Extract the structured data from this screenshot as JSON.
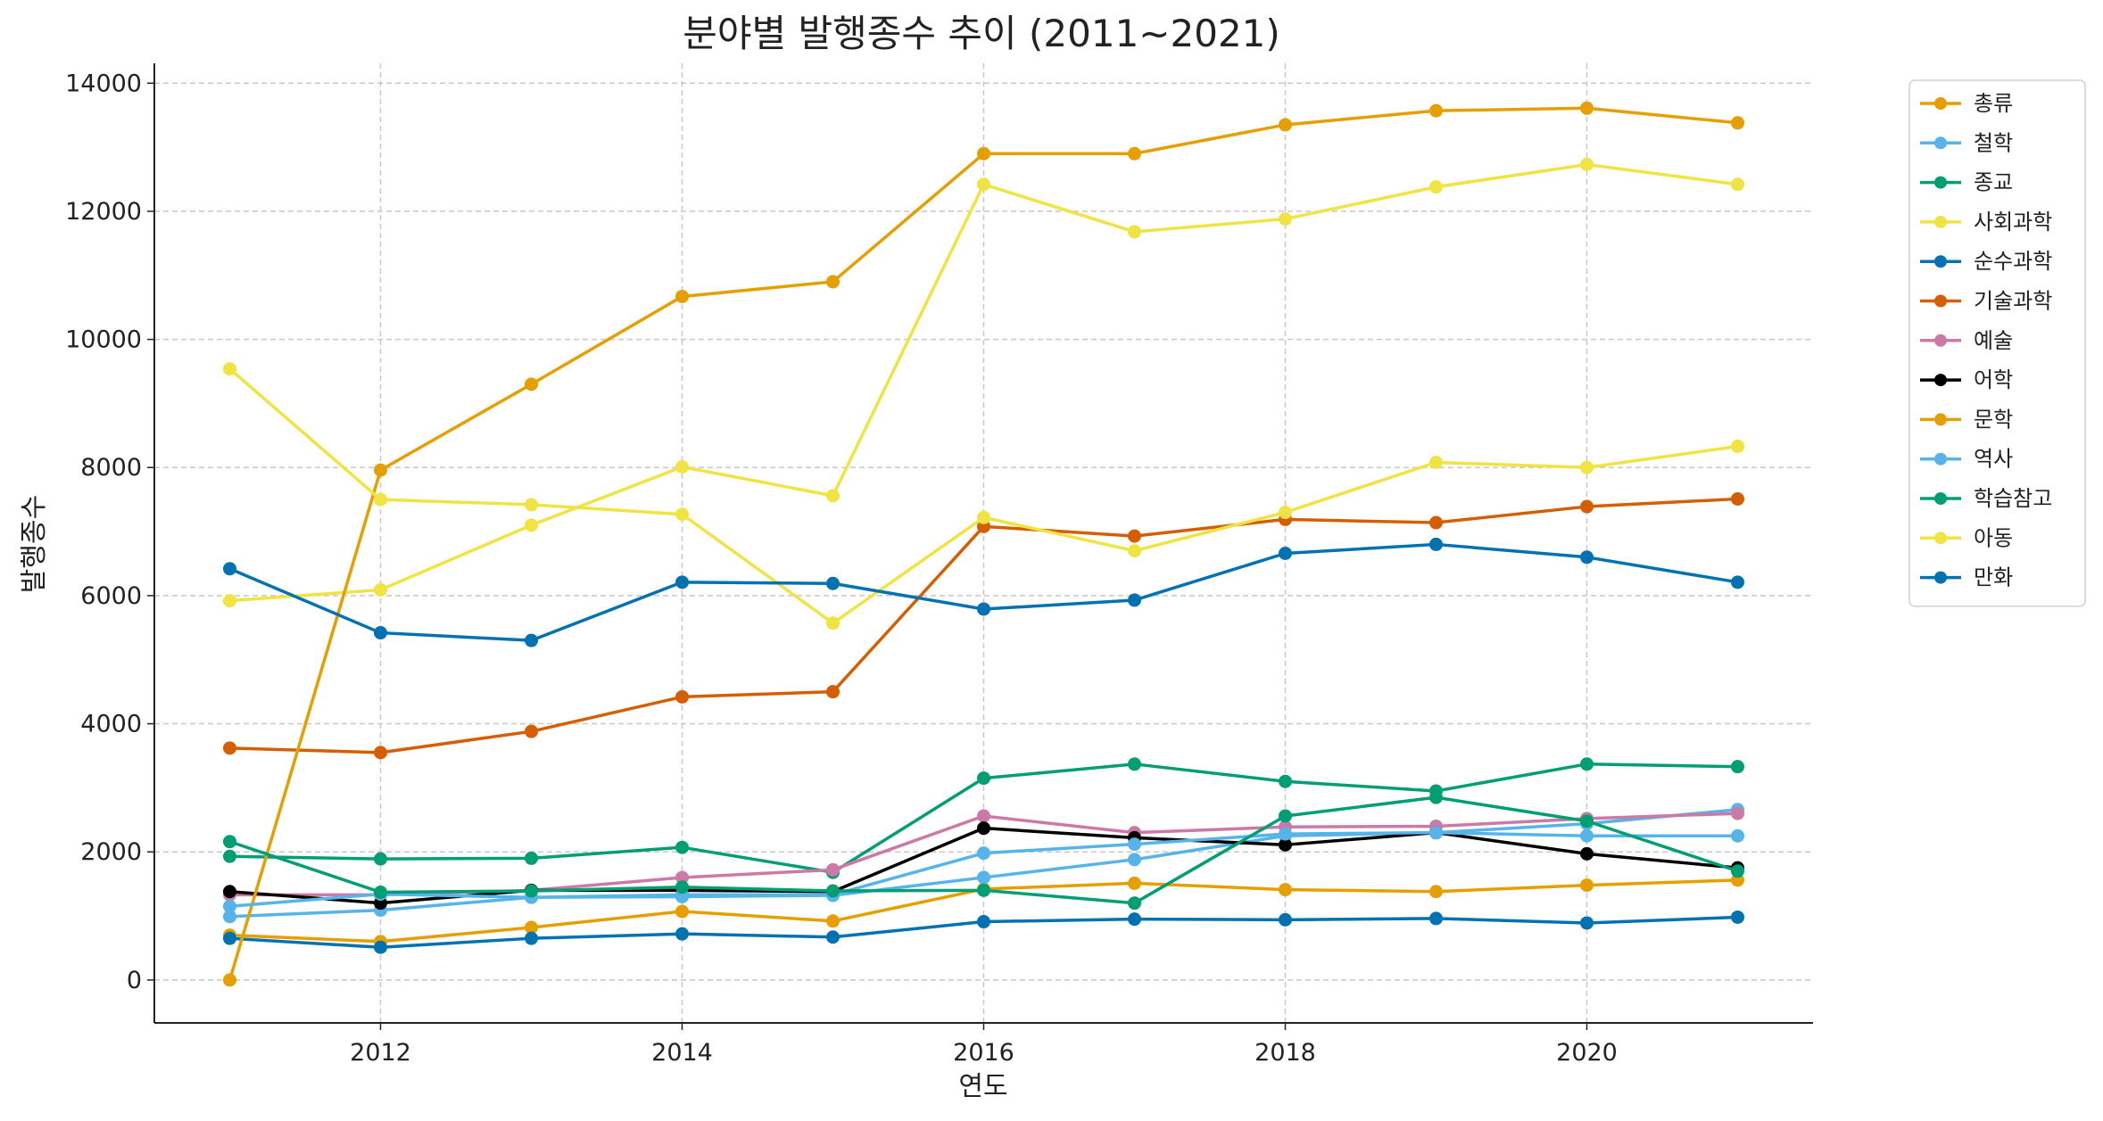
{
  "chart_data": {
    "type": "line",
    "title": "분야별 발행종수 추이 (2011~2021)",
    "xlabel": "연도",
    "ylabel": "발행종수",
    "x": [
      2011,
      2012,
      2013,
      2014,
      2015,
      2016,
      2017,
      2018,
      2019,
      2020,
      2021
    ],
    "xlim": [
      2010.5,
      2021.5
    ],
    "ylim": [
      -670,
      14310
    ],
    "xticks": [
      2012,
      2014,
      2016,
      2018,
      2020
    ],
    "yticks": [
      0,
      2000,
      4000,
      6000,
      8000,
      10000,
      12000,
      14000
    ],
    "grid": true,
    "legend_position": "outside-top-right",
    "series": [
      {
        "name": "총류",
        "color": "#E69F00",
        "values": [
          700,
          600,
          820,
          1070,
          920,
          1420,
          1510,
          1410,
          1380,
          1480,
          1560
        ]
      },
      {
        "name": "철학",
        "color": "#56B4E9",
        "values": [
          990,
          1090,
          1290,
          1300,
          1320,
          1600,
          1880,
          2250,
          2300,
          2440,
          2660
        ]
      },
      {
        "name": "종교",
        "color": "#009E73",
        "values": [
          1930,
          1890,
          1900,
          2070,
          1680,
          3150,
          3370,
          3100,
          2950,
          3370,
          3330
        ]
      },
      {
        "name": "사회과학",
        "color": "#F0E442",
        "values": [
          5920,
          6090,
          7100,
          8010,
          7560,
          12420,
          11680,
          11880,
          12380,
          12730,
          12420
        ]
      },
      {
        "name": "순수과학",
        "color": "#0072B2",
        "values": [
          650,
          510,
          650,
          720,
          670,
          910,
          950,
          940,
          960,
          890,
          980
        ]
      },
      {
        "name": "기술과학",
        "color": "#D55E00",
        "values": [
          3620,
          3550,
          3880,
          4420,
          4500,
          7080,
          6930,
          7190,
          7140,
          7390,
          7510
        ]
      },
      {
        "name": "예술",
        "color": "#CC79A7",
        "values": [
          1330,
          1330,
          1400,
          1600,
          1720,
          2560,
          2300,
          2390,
          2400,
          2520,
          2600
        ]
      },
      {
        "name": "어학",
        "color": "#000000",
        "values": [
          1380,
          1200,
          1400,
          1400,
          1380,
          2370,
          2220,
          2110,
          2300,
          1970,
          1750
        ]
      },
      {
        "name": "문학",
        "color": "#E69F00",
        "values": [
          0,
          7960,
          9300,
          10670,
          10900,
          12900,
          12900,
          13350,
          13570,
          13610,
          13380
        ]
      },
      {
        "name": "역사",
        "color": "#56B4E9",
        "values": [
          1150,
          1340,
          1290,
          1330,
          1330,
          1980,
          2120,
          2280,
          2300,
          2250,
          2250
        ]
      },
      {
        "name": "학습참고",
        "color": "#009E73",
        "values": [
          2160,
          1370,
          1390,
          1450,
          1390,
          1400,
          1200,
          2560,
          2850,
          2480,
          1700
        ]
      },
      {
        "name": "아동",
        "color": "#F0E442",
        "values": [
          9540,
          7500,
          7420,
          7270,
          5570,
          7220,
          6700,
          7300,
          8080,
          8000,
          8330
        ]
      },
      {
        "name": "만화",
        "color": "#0072B2",
        "values": [
          6420,
          5420,
          5300,
          6210,
          6190,
          5790,
          5930,
          6660,
          6800,
          6600,
          6210
        ]
      }
    ]
  }
}
